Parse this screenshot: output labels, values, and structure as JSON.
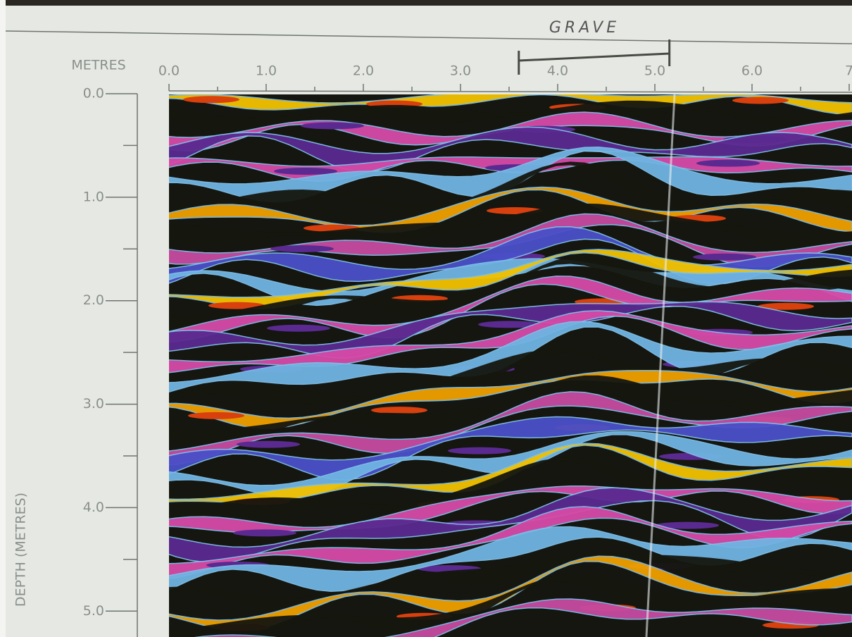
{
  "chart_data": {
    "type": "radargram",
    "annotation": {
      "text": "GRAVE",
      "span": [
        3.6,
        5.15
      ]
    },
    "x_label": "METRES",
    "y_label": "DEPTH (METRES)",
    "xlim": [
      0,
      7
    ],
    "xticks": [
      {
        "value": 0,
        "label": "0.0"
      },
      {
        "value": 1,
        "label": "1.0"
      },
      {
        "value": 2,
        "label": "2.0"
      },
      {
        "value": 3,
        "label": "3.0"
      },
      {
        "value": 4,
        "label": "4.0"
      },
      {
        "value": 5,
        "label": "5.0"
      },
      {
        "value": 6,
        "label": "6.0"
      },
      7
    ],
    "xminorticks": [
      0.5,
      1.5,
      2.5,
      3.5,
      4.5,
      5.5,
      6.5
    ],
    "ylim": [
      0,
      5.25
    ],
    "yticks": [
      {
        "value": 0,
        "label": "0.0"
      },
      {
        "value": 1,
        "label": "1.0"
      },
      {
        "value": 2,
        "label": "2.0"
      },
      {
        "value": 3,
        "label": "3.0"
      },
      {
        "value": 4,
        "label": "4.0"
      },
      {
        "value": 5,
        "label": "5.0"
      }
    ],
    "yminorticks": [
      0.5,
      1.5,
      2.5,
      3.5,
      4.5
    ]
  }
}
